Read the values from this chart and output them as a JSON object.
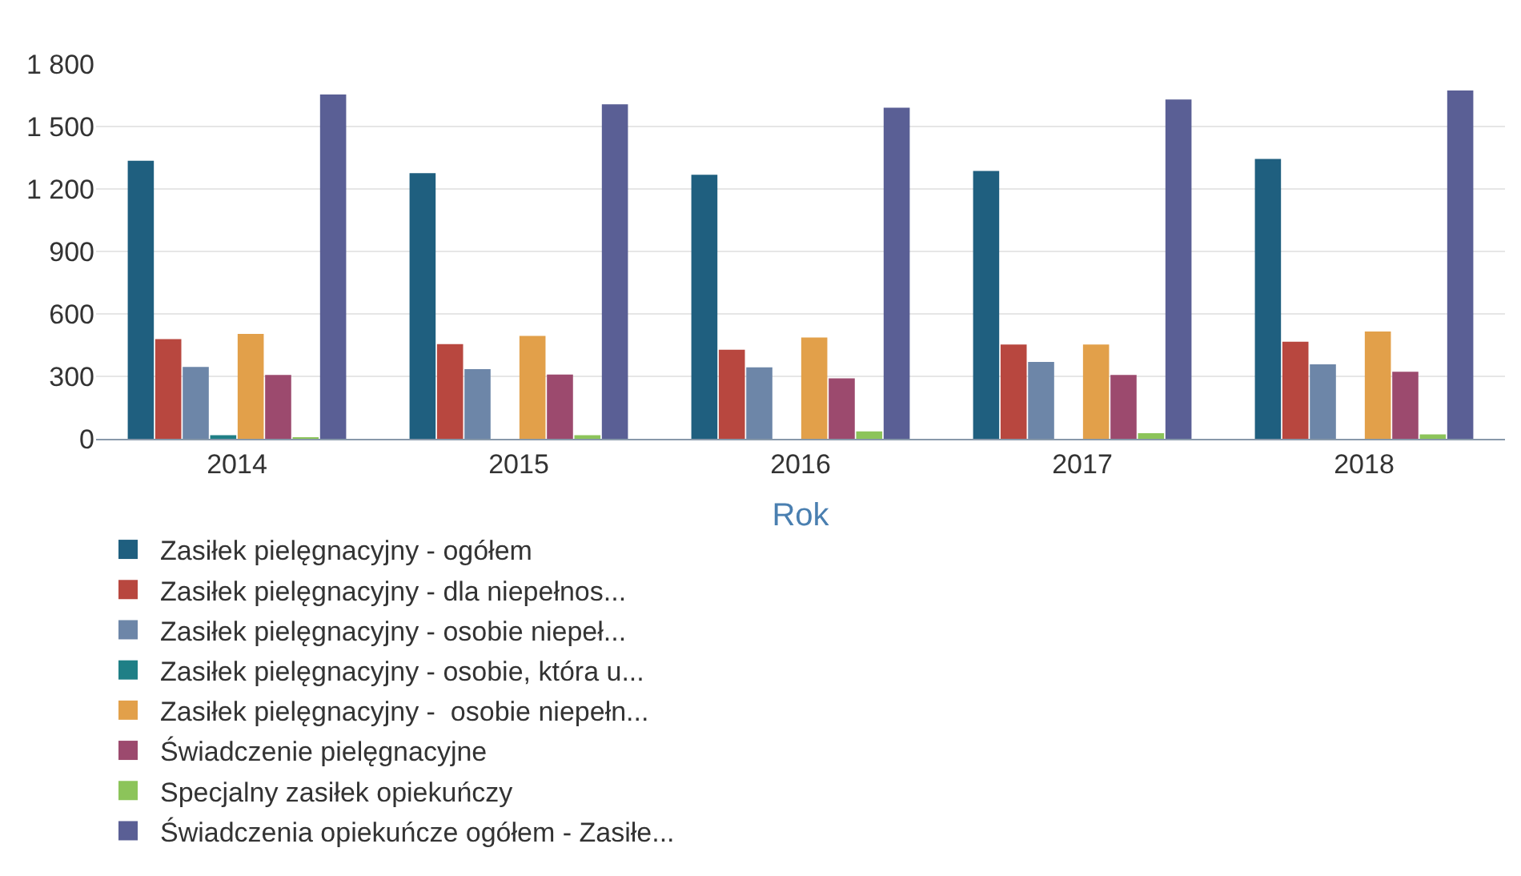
{
  "chart_data": {
    "type": "bar",
    "xlabel": "Rok",
    "categories": [
      "2014",
      "2015",
      "2016",
      "2017",
      "2018"
    ],
    "series": [
      {
        "name": "Zasiłek pielęgnacyjny - ogółem",
        "color": "#1f5f7f",
        "values": [
          1336,
          1276,
          1268,
          1287,
          1344
        ]
      },
      {
        "name": "Zasiłek pielęgnacyjny - dla niepełnos...",
        "color": "#b8473f",
        "values": [
          479,
          455,
          428,
          453,
          466
        ]
      },
      {
        "name": "Zasiłek pielęgnacyjny - osobie niepeł...",
        "color": "#6d86a8",
        "values": [
          345,
          335,
          343,
          369,
          358
        ]
      },
      {
        "name": "Zasiłek pielęgnacyjny - osobie, która u...",
        "color": "#1f7f86",
        "values": [
          17,
          0,
          0,
          0,
          0
        ]
      },
      {
        "name": "Zasiłek pielęgnacyjny -  osobie niepełn...",
        "color": "#e2a04a",
        "values": [
          504,
          494,
          487,
          453,
          515
        ]
      },
      {
        "name": "Świadczenie pielęgnacyjne",
        "color": "#9c4a6e",
        "values": [
          307,
          309,
          290,
          307,
          322
        ]
      },
      {
        "name": "Specjalny zasiłek opiekuńczy",
        "color": "#8cc45a",
        "values": [
          5,
          17,
          36,
          27,
          21
        ]
      },
      {
        "name": "Świadczenia opiekuńcze ogółem - Zasiłe...",
        "color": "#5a5f95",
        "values": [
          1654,
          1607,
          1590,
          1630,
          1673
        ]
      }
    ],
    "ylim": [
      0,
      1800
    ],
    "yticks": [
      0,
      300,
      600,
      900,
      {
        "value": 1200,
        "label": "1 200"
      },
      {
        "value": 1500,
        "label": "1 500"
      },
      {
        "value": 1800,
        "label": "1 800"
      }
    ],
    "grid": "y",
    "legend": "bottom"
  }
}
